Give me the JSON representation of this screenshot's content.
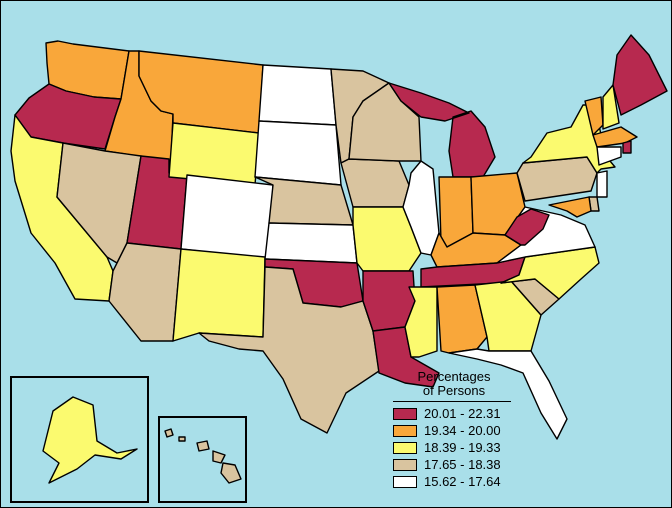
{
  "legend": {
    "title_line1": "Percentages",
    "title_line2": "of Persons",
    "classes": [
      {
        "label": "20.01 - 22.31",
        "color": "#b7294f"
      },
      {
        "label": "19.34 - 20.00",
        "color": "#f9a73a"
      },
      {
        "label": "18.39 - 19.33",
        "color": "#fbfa6f"
      },
      {
        "label": "17.65 - 18.38",
        "color": "#d9c49f"
      },
      {
        "label": "15.62 - 17.64",
        "color": "#ffffff"
      }
    ]
  },
  "colors": {
    "water": "#a9dfe9",
    "border": "#000000"
  },
  "states": {
    "WA": 1,
    "OR": 0,
    "CA": 2,
    "ID": 1,
    "NV": 3,
    "UT": 0,
    "AZ": 3,
    "MT": 1,
    "WY": 2,
    "CO": 4,
    "NM": 2,
    "ND": 4,
    "SD": 4,
    "NE": 3,
    "KS": 4,
    "OK": 0,
    "TX": 3,
    "MN": 3,
    "IA": 3,
    "MO": 2,
    "AR": 0,
    "LA": 0,
    "WI": 3,
    "IL": 4,
    "MI": 0,
    "IN": 1,
    "OH": 1,
    "KY": 1,
    "TN": 0,
    "MS": 2,
    "AL": 1,
    "GA": 2,
    "FL": 4,
    "SC": 3,
    "NC": 2,
    "VA": 4,
    "WV": 0,
    "PA": 3,
    "NY": 2,
    "VT": 1,
    "NH": 2,
    "ME": 0,
    "MA": 1,
    "RI": 0,
    "CT": 4,
    "NJ": 4,
    "DE": 3,
    "MD": 1,
    "AK": 2,
    "HI": 3
  }
}
